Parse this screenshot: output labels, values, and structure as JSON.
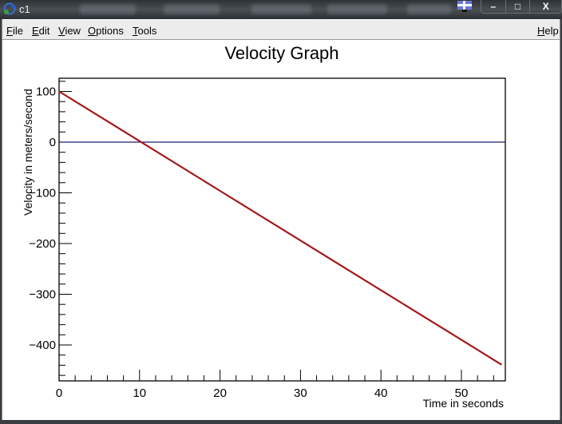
{
  "window": {
    "title": "c1",
    "controls": {
      "minimize": "–",
      "maximize": "□",
      "close": "X"
    }
  },
  "menubar": {
    "items": [
      {
        "label": "File",
        "accel": "F",
        "rest": "ile"
      },
      {
        "label": "Edit",
        "accel": "E",
        "rest": "dit"
      },
      {
        "label": "View",
        "accel": "V",
        "rest": "iew"
      },
      {
        "label": "Options",
        "accel": "O",
        "rest": "ptions"
      },
      {
        "label": "Tools",
        "accel": "T",
        "rest": "ools"
      }
    ],
    "help": {
      "label": "Help",
      "accel": "H",
      "rest": "elp"
    }
  },
  "chart_data": {
    "type": "line",
    "title": "Velocity Graph",
    "xlabel": "Time in seconds",
    "ylabel": "Velocity in meters/second",
    "xlim": [
      0,
      55
    ],
    "ylim": [
      -470,
      125
    ],
    "xticks": [
      0,
      10,
      20,
      30,
      40,
      50
    ],
    "xtick_labels": [
      "0",
      "10",
      "20",
      "30",
      "40",
      "50"
    ],
    "yticks": [
      100,
      0,
      -100,
      -200,
      -300,
      -400
    ],
    "ytick_labels": [
      "100",
      "0",
      "−100",
      "−200",
      "−300",
      "−400"
    ],
    "grid": false,
    "legend": null,
    "series": [
      {
        "name": "velocity",
        "color": "#a31a1a",
        "x": [
          0,
          10,
          20,
          30,
          40,
          50,
          55
        ],
        "values": [
          100,
          2,
          -96,
          -194,
          -292,
          -390,
          -439
        ]
      }
    ],
    "reference_lines": [
      {
        "y": 0,
        "color": "#1a1a6e"
      }
    ]
  }
}
